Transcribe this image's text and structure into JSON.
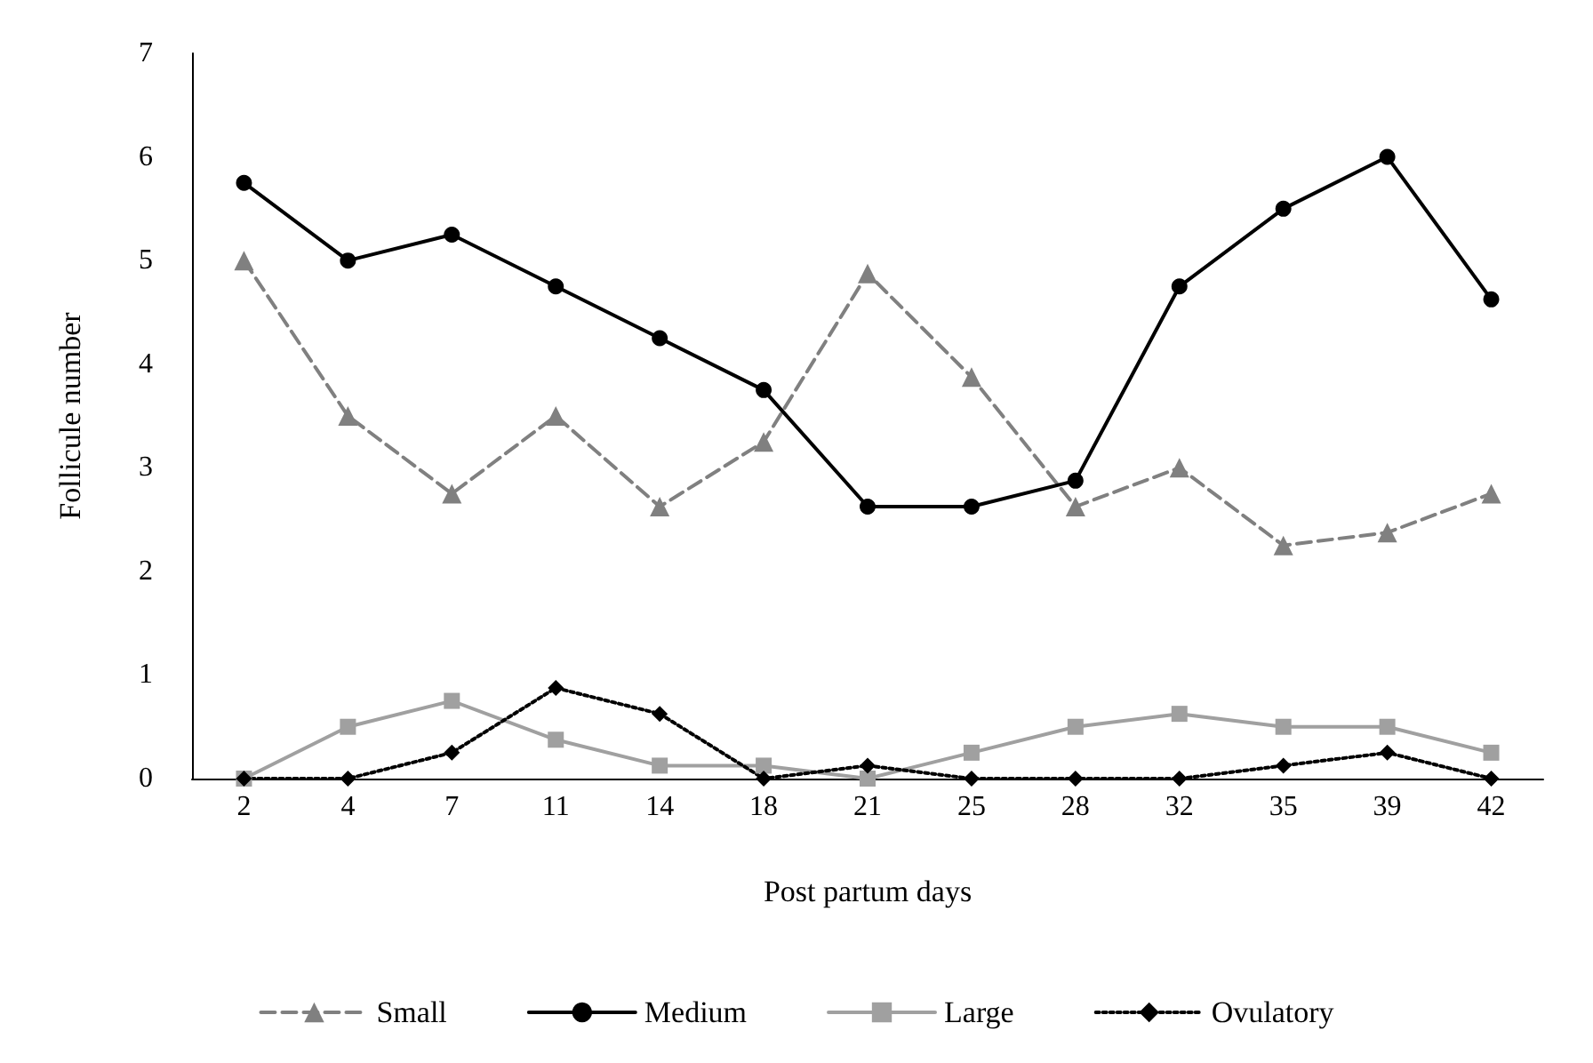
{
  "chart_data": {
    "type": "line",
    "xlabel": "Post partum days",
    "ylabel": "Follicule number",
    "categories": [
      "2",
      "4",
      "7",
      "11",
      "14",
      "18",
      "21",
      "25",
      "28",
      "32",
      "35",
      "39",
      "42"
    ],
    "series": [
      {
        "name": "Small",
        "color": "#808080",
        "marker": "triangle",
        "line_style": "dashed",
        "values": [
          5,
          3.5,
          2.75,
          3.5,
          2.625,
          3.25,
          4.875,
          3.875,
          2.625,
          3,
          2.25,
          2.375,
          2.75
        ]
      },
      {
        "name": "Medium",
        "color": "#000000",
        "marker": "circle",
        "line_style": "solid",
        "values": [
          5.75,
          5,
          5.25,
          4.75,
          4.25,
          3.75,
          2.625,
          2.625,
          2.875,
          4.75,
          5.5,
          6,
          4.625
        ]
      },
      {
        "name": "Large",
        "color": "#a0a0a0",
        "marker": "square",
        "line_style": "solid",
        "values": [
          0,
          0.5,
          0.75,
          0.375,
          0.125,
          0.125,
          0,
          0.25,
          0.5,
          0.625,
          0.5,
          0.5,
          0.25
        ]
      },
      {
        "name": "Ovulatory",
        "color": "#000000",
        "marker": "diamond",
        "line_style": "dotted",
        "values": [
          0,
          0,
          0.25,
          0.875,
          0.625,
          0,
          0.125,
          0,
          0,
          0,
          0.125,
          0.25,
          0
        ]
      }
    ],
    "ylim": [
      0,
      7
    ],
    "yticks": [
      0,
      1,
      2,
      3,
      4,
      5,
      6,
      7
    ],
    "grid": false,
    "legend": "bottom"
  }
}
